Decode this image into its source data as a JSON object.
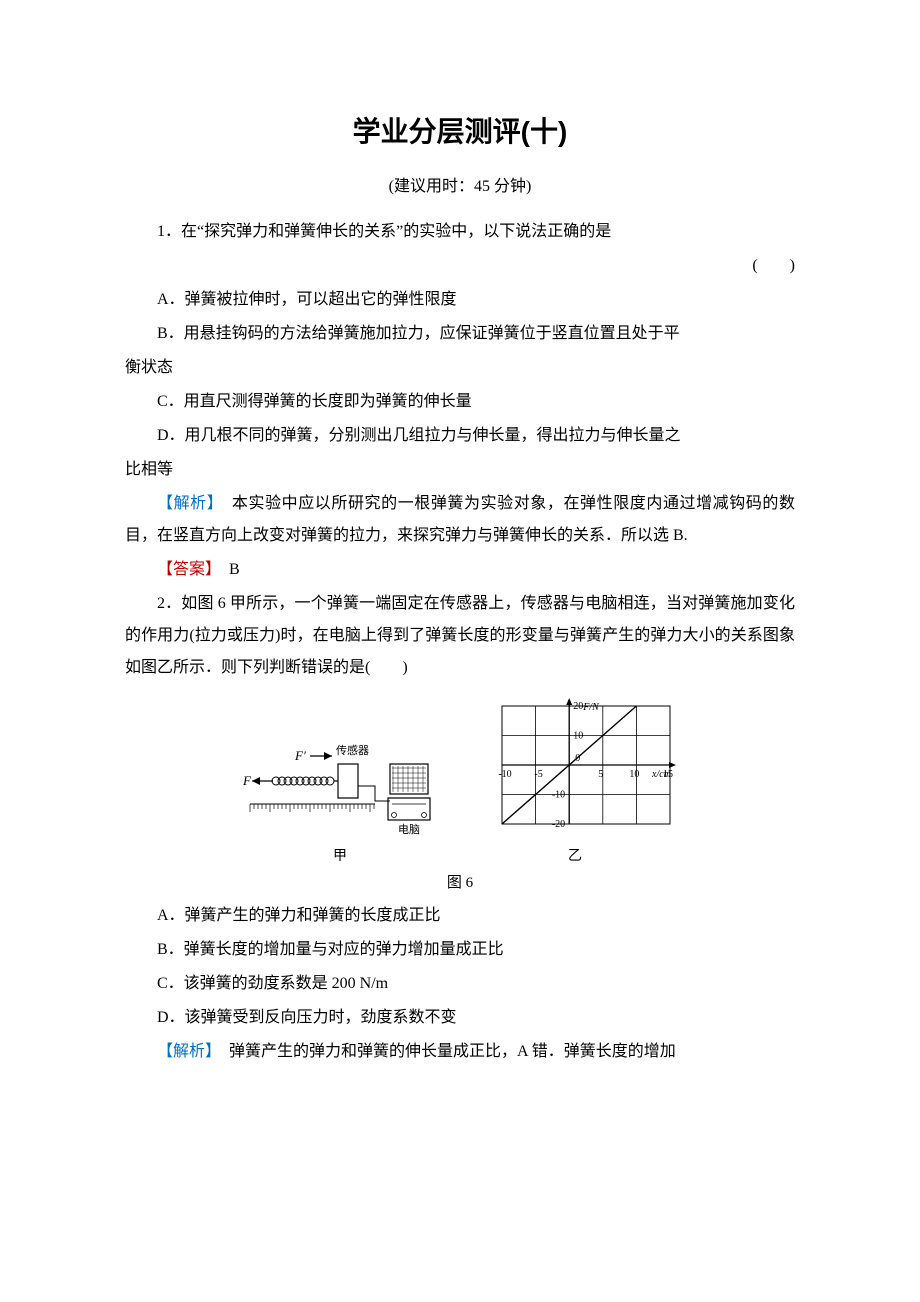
{
  "title": "学业分层测评(十)",
  "subtitle": "(建议用时：45 分钟)",
  "q1": {
    "stem": "1．在“探究弹力和弹簧伸长的关系”的实验中，以下说法正确的是",
    "blank": "(　　)",
    "optA": "A．弹簧被拉伸时，可以超出它的弹性限度",
    "optB1": "B．用悬挂钩码的方法给弹簧施加拉力，应保证弹簧位于竖直位置且处于平",
    "optB2": "衡状态",
    "optC": "C．用直尺测得弹簧的长度即为弹簧的伸长量",
    "optD1": "D．用几根不同的弹簧，分别测出几组拉力与伸长量，得出拉力与伸长量之",
    "optD2": "比相等",
    "explain_label": "【解析】",
    "explain_text": "　本实验中应以所研究的一根弹簧为实验对象，在弹性限度内通过增减钩码的数目，在竖直方向上改变对弹簧的拉力，来探究弹力与弹簧伸长的关系．所以选 B.",
    "answer_label": "【答案】",
    "answer_text": "　B"
  },
  "q2": {
    "stem": "2．如图 6 甲所示，一个弹簧一端固定在传感器上，传感器与电脑相连，当对弹簧施加变化的作用力(拉力或压力)时，在电脑上得到了弹簧长度的形变量与弹簧产生的弹力大小的关系图象如图乙所示．则下列判断错误的是(　　)",
    "fig_label": "图 6",
    "sub_left": "甲",
    "sub_right": "乙",
    "left_diagram": {
      "F_label": "F",
      "Fp_label": "F′",
      "sensor_label": "传感器",
      "computer_label": "电脑"
    },
    "chart": {
      "type": "line",
      "title_y": "F/N",
      "title_x": "x/cm",
      "xlim": [
        -10,
        15
      ],
      "ylim": [
        -20,
        20
      ],
      "xticks": [
        -10,
        -5,
        5,
        10,
        15
      ],
      "yticks": [
        -20,
        -10,
        0,
        10,
        20
      ],
      "line": {
        "x1": -10,
        "y1": -20,
        "x2": 10,
        "y2": 20
      },
      "colors": {
        "bg": "#ffffff",
        "grid": "#000000",
        "axis": "#000000",
        "line": "#000000",
        "text": "#000000"
      },
      "line_width": 1.4,
      "grid_width": 0.8,
      "font_size": 10
    },
    "optA": "A．弹簧产生的弹力和弹簧的长度成正比",
    "optB": "B．弹簧长度的增加量与对应的弹力增加量成正比",
    "optC": "C．该弹簧的劲度系数是 200 N/m",
    "optD": "D．该弹簧受到反向压力时，劲度系数不变",
    "explain_label": "【解析】",
    "explain_text": "　弹簧产生的弹力和弹簧的伸长量成正比，A 错．弹簧长度的增加"
  }
}
